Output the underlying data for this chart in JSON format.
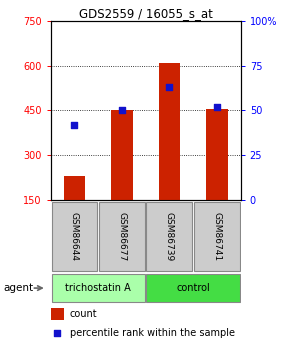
{
  "title": "GDS2559 / 16055_s_at",
  "samples": [
    "GSM86644",
    "GSM86677",
    "GSM86739",
    "GSM86741"
  ],
  "bar_values": [
    230,
    450,
    610,
    455
  ],
  "bar_baseline": 150,
  "bar_color": "#cc2200",
  "blue_values": [
    42,
    50,
    63,
    52
  ],
  "blue_color": "#1111cc",
  "ylim_left": [
    150,
    750
  ],
  "ylim_right": [
    0,
    100
  ],
  "yticks_left": [
    150,
    300,
    450,
    600,
    750
  ],
  "yticks_right": [
    0,
    25,
    50,
    75,
    100
  ],
  "groups": [
    {
      "label": "trichostatin A",
      "color": "#aaffaa",
      "span": 2
    },
    {
      "label": "control",
      "color": "#44dd44",
      "span": 2
    }
  ],
  "agent_label": "agent",
  "legend_count_label": "count",
  "legend_pct_label": "percentile rank within the sample",
  "sample_box_color": "#cccccc",
  "sample_border_color": "#888888",
  "title_fontsize": 8.5,
  "tick_fontsize": 7,
  "label_fontsize": 6.5,
  "group_fontsize": 7,
  "legend_fontsize": 7
}
